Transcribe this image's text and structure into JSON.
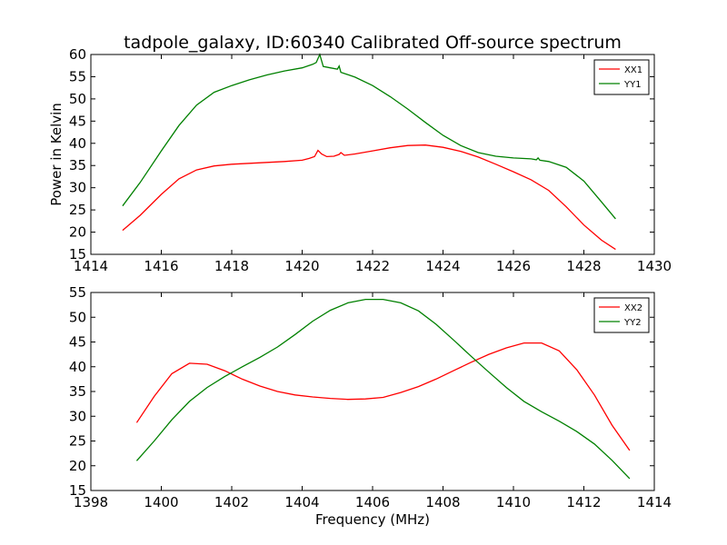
{
  "title": "tadpole_galaxy, ID:60340 Calibrated Off-source spectrum",
  "colors": {
    "xx": "#ff0000",
    "yy": "#008000",
    "axes": "#000000",
    "background": "#ffffff"
  },
  "chart_data": [
    {
      "type": "line",
      "title": "tadpole_galaxy, ID:60340 Calibrated Off-source spectrum",
      "xlabel": "",
      "ylabel": "Power in Kelvin",
      "xlim": [
        1414,
        1430
      ],
      "ylim": [
        15,
        60
      ],
      "xticks": [
        1414,
        1416,
        1418,
        1420,
        1422,
        1424,
        1426,
        1428,
        1430
      ],
      "yticks": [
        15,
        20,
        25,
        30,
        35,
        40,
        45,
        50,
        55,
        60
      ],
      "grid": false,
      "legend_position": "top-right",
      "series": [
        {
          "name": "XX1",
          "color": "#ff0000",
          "points": [
            [
              1414.9,
              20.4
            ],
            [
              1415.4,
              23.8
            ],
            [
              1416.0,
              28.5
            ],
            [
              1416.5,
              32.0
            ],
            [
              1417.0,
              34.0
            ],
            [
              1417.5,
              34.9
            ],
            [
              1418.0,
              35.3
            ],
            [
              1418.5,
              35.5
            ],
            [
              1419.0,
              35.7
            ],
            [
              1419.5,
              35.9
            ],
            [
              1420.0,
              36.2
            ],
            [
              1420.2,
              36.6
            ],
            [
              1420.35,
              37.0
            ],
            [
              1420.45,
              38.4
            ],
            [
              1420.55,
              37.6
            ],
            [
              1420.7,
              37.0
            ],
            [
              1420.9,
              37.1
            ],
            [
              1421.05,
              37.5
            ],
            [
              1421.1,
              37.9
            ],
            [
              1421.2,
              37.3
            ],
            [
              1421.5,
              37.6
            ],
            [
              1422.0,
              38.3
            ],
            [
              1422.5,
              39.0
            ],
            [
              1423.0,
              39.5
            ],
            [
              1423.5,
              39.6
            ],
            [
              1424.0,
              39.1
            ],
            [
              1424.5,
              38.2
            ],
            [
              1425.0,
              36.9
            ],
            [
              1425.5,
              35.3
            ],
            [
              1426.0,
              33.6
            ],
            [
              1426.5,
              31.8
            ],
            [
              1427.0,
              29.4
            ],
            [
              1427.5,
              25.7
            ],
            [
              1428.0,
              21.6
            ],
            [
              1428.5,
              18.2
            ],
            [
              1428.9,
              16.1
            ]
          ]
        },
        {
          "name": "YY1",
          "color": "#008000",
          "points": [
            [
              1414.9,
              25.9
            ],
            [
              1415.4,
              31.2
            ],
            [
              1416.0,
              38.3
            ],
            [
              1416.5,
              44.0
            ],
            [
              1417.0,
              48.6
            ],
            [
              1417.5,
              51.5
            ],
            [
              1418.0,
              53.0
            ],
            [
              1418.5,
              54.3
            ],
            [
              1419.0,
              55.4
            ],
            [
              1419.5,
              56.3
            ],
            [
              1420.0,
              57.0
            ],
            [
              1420.3,
              57.8
            ],
            [
              1420.4,
              58.2
            ],
            [
              1420.5,
              60.0
            ],
            [
              1420.6,
              57.3
            ],
            [
              1420.8,
              57.0
            ],
            [
              1421.0,
              56.7
            ],
            [
              1421.05,
              57.4
            ],
            [
              1421.1,
              56.0
            ],
            [
              1421.5,
              54.9
            ],
            [
              1422.0,
              53.0
            ],
            [
              1422.5,
              50.5
            ],
            [
              1423.0,
              47.7
            ],
            [
              1423.5,
              44.7
            ],
            [
              1424.0,
              41.8
            ],
            [
              1424.5,
              39.5
            ],
            [
              1425.0,
              37.9
            ],
            [
              1425.5,
              37.1
            ],
            [
              1426.0,
              36.7
            ],
            [
              1426.5,
              36.5
            ],
            [
              1426.65,
              36.3
            ],
            [
              1426.7,
              36.7
            ],
            [
              1426.75,
              36.2
            ],
            [
              1427.0,
              35.9
            ],
            [
              1427.5,
              34.6
            ],
            [
              1428.0,
              31.5
            ],
            [
              1428.5,
              26.8
            ],
            [
              1428.9,
              23.0
            ]
          ]
        }
      ]
    },
    {
      "type": "line",
      "title": "",
      "xlabel": "Frequency (MHz)",
      "ylabel": "",
      "xlim": [
        1398,
        1414
      ],
      "ylim": [
        15,
        55
      ],
      "xticks": [
        1398,
        1400,
        1402,
        1404,
        1406,
        1408,
        1410,
        1412,
        1414
      ],
      "yticks": [
        15,
        20,
        25,
        30,
        35,
        40,
        45,
        50,
        55
      ],
      "grid": false,
      "legend_position": "top-right",
      "series": [
        {
          "name": "XX2",
          "color": "#ff0000",
          "points": [
            [
              1399.3,
              28.7
            ],
            [
              1399.8,
              34.0
            ],
            [
              1400.3,
              38.6
            ],
            [
              1400.8,
              40.7
            ],
            [
              1401.3,
              40.5
            ],
            [
              1401.8,
              39.2
            ],
            [
              1402.3,
              37.5
            ],
            [
              1402.8,
              36.1
            ],
            [
              1403.3,
              35.0
            ],
            [
              1403.8,
              34.3
            ],
            [
              1404.3,
              33.9
            ],
            [
              1404.8,
              33.6
            ],
            [
              1405.3,
              33.4
            ],
            [
              1405.8,
              33.5
            ],
            [
              1406.3,
              33.8
            ],
            [
              1406.8,
              34.8
            ],
            [
              1407.3,
              36.0
            ],
            [
              1407.8,
              37.5
            ],
            [
              1408.3,
              39.2
            ],
            [
              1408.8,
              40.9
            ],
            [
              1409.3,
              42.5
            ],
            [
              1409.8,
              43.8
            ],
            [
              1410.3,
              44.8
            ],
            [
              1410.8,
              44.8
            ],
            [
              1411.3,
              43.2
            ],
            [
              1411.8,
              39.4
            ],
            [
              1412.3,
              34.3
            ],
            [
              1412.8,
              28.2
            ],
            [
              1413.3,
              23.1
            ]
          ]
        },
        {
          "name": "YY2",
          "color": "#008000",
          "points": [
            [
              1399.3,
              21.0
            ],
            [
              1399.8,
              25.0
            ],
            [
              1400.3,
              29.3
            ],
            [
              1400.8,
              33.0
            ],
            [
              1401.3,
              35.8
            ],
            [
              1401.8,
              38.0
            ],
            [
              1402.3,
              40.0
            ],
            [
              1402.8,
              41.9
            ],
            [
              1403.3,
              44.0
            ],
            [
              1403.8,
              46.5
            ],
            [
              1404.3,
              49.2
            ],
            [
              1404.8,
              51.4
            ],
            [
              1405.3,
              52.9
            ],
            [
              1405.8,
              53.6
            ],
            [
              1406.3,
              53.6
            ],
            [
              1406.8,
              52.9
            ],
            [
              1407.3,
              51.3
            ],
            [
              1407.8,
              48.6
            ],
            [
              1408.3,
              45.4
            ],
            [
              1408.8,
              42.1
            ],
            [
              1409.3,
              38.9
            ],
            [
              1409.8,
              35.8
            ],
            [
              1410.3,
              33.0
            ],
            [
              1410.8,
              30.9
            ],
            [
              1411.3,
              29.0
            ],
            [
              1411.8,
              26.9
            ],
            [
              1412.3,
              24.4
            ],
            [
              1412.8,
              21.1
            ],
            [
              1413.3,
              17.4
            ]
          ]
        }
      ]
    }
  ]
}
